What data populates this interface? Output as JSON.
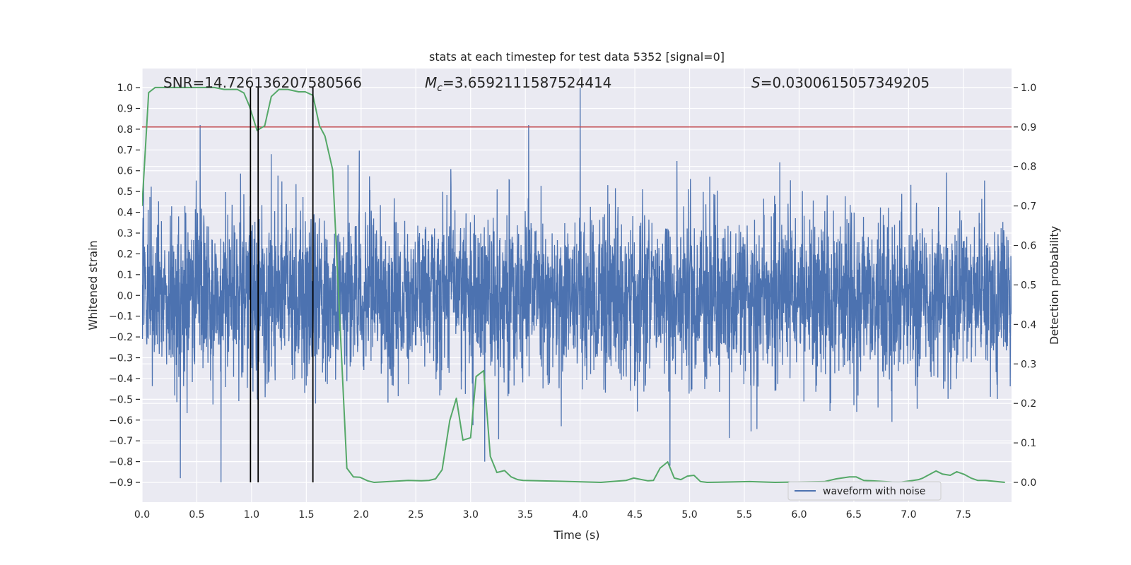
{
  "chart_data": {
    "type": "line",
    "title": "stats at each timestep for test data 5352 [signal=0]",
    "xlabel": "Time (s)",
    "ylabel": "Whitened strain",
    "ylabel_right": "Detection probability",
    "xlim": [
      0,
      7.94
    ],
    "ylim": [
      -0.995,
      1.092
    ],
    "ylim_right": [
      -0.05,
      1.048
    ],
    "grid": true,
    "xticks": [
      0,
      0.5,
      1,
      1.5,
      2,
      2.5,
      3,
      3.5,
      4,
      4.5,
      5,
      5.5,
      6,
      6.5,
      7,
      7.5
    ],
    "xtick_labels": [
      "0.0",
      "0.5",
      "1.0",
      "1.5",
      "2.0",
      "2.5",
      "3.0",
      "3.5",
      "4.0",
      "4.5",
      "5.0",
      "5.5",
      "6.0",
      "6.5",
      "7.0",
      "7.5"
    ],
    "yticks": [
      1.0,
      0.9,
      0.8,
      0.7,
      0.6,
      0.5,
      0.4,
      0.3,
      0.2,
      0.1,
      0.0,
      -0.1,
      -0.2,
      -0.3,
      -0.4,
      -0.5,
      -0.6,
      -0.7,
      -0.8,
      -0.9
    ],
    "ytick_labels": [
      "1.0",
      "0.9",
      "0.8",
      "0.7",
      "0.6",
      "0.5",
      "0.4",
      "0.3",
      "0.2",
      "0.1",
      "0.0",
      "−0.1",
      "−0.2",
      "−0.3",
      "−0.4",
      "−0.5",
      "−0.6",
      "−0.7",
      "−0.8",
      "−0.9"
    ],
    "yticks_right": [
      1.0,
      0.9,
      0.8,
      0.7,
      0.6,
      0.5,
      0.4,
      0.3,
      0.2,
      0.1,
      0.0
    ],
    "ytick_labels_right": [
      "1.0",
      "0.9",
      "0.8",
      "0.7",
      "0.6",
      "0.5",
      "0.4",
      "0.3",
      "0.2",
      "0.1",
      "0.0"
    ],
    "annotations": {
      "snr": "SNR=14.726136207580566",
      "mc_symbol": "M",
      "mc_subscript": "c",
      "mc_value": "=3.6592111587524414",
      "s_symbol": "S",
      "s_value": "=0.0300615057349205"
    },
    "legend": {
      "placement": "lower-right",
      "entries": [
        "waveform with noise"
      ]
    },
    "threshold_right": 0.9,
    "vertical_markers": [
      0.99,
      1.06,
      1.56
    ],
    "series": [
      {
        "name": "waveform with noise",
        "axis": "left",
        "color": "#4C72B0",
        "generated_noise": {
          "n_samples": 4000,
          "std": 0.2,
          "seed": 5352
        },
        "notable_peaks": [
          {
            "t": 0.53,
            "v": 0.82
          },
          {
            "t": 0.72,
            "v": -0.9
          },
          {
            "t": 0.35,
            "v": -0.88
          },
          {
            "t": 3.53,
            "v": 0.82
          },
          {
            "t": 4.0,
            "v": 1.0
          },
          {
            "t": 4.82,
            "v": -0.82
          },
          {
            "t": 3.13,
            "v": -0.8
          },
          {
            "t": 1.18,
            "v": 0.68
          }
        ]
      },
      {
        "name": "detection probability",
        "axis": "right",
        "color": "#55A868",
        "x": [
          0,
          0.06,
          0.12,
          0.66,
          0.75,
          0.87,
          0.93,
          0.98,
          1.05,
          1.12,
          1.18,
          1.25,
          1.33,
          1.43,
          1.49,
          1.56,
          1.62,
          1.67,
          1.74,
          1.87,
          1.93,
          1.99,
          2.06,
          2.12,
          2.25,
          2.43,
          2.55,
          2.62,
          2.68,
          2.74,
          2.81,
          2.87,
          2.93,
          3.0,
          3.05,
          3.12,
          3.18,
          3.24,
          3.31,
          3.37,
          3.43,
          3.48,
          3.8,
          4.19,
          4.42,
          4.49,
          4.62,
          4.67,
          4.73,
          4.8,
          4.86,
          4.92,
          4.98,
          5.04,
          5.1,
          5.16,
          5.55,
          5.78,
          6.23,
          6.34,
          6.46,
          6.52,
          6.59,
          6.66,
          6.91,
          7.02,
          7.09,
          7.13,
          7.25,
          7.31,
          7.38,
          7.44,
          7.51,
          7.57,
          7.63,
          7.7,
          7.88
        ],
        "y": [
          0.7,
          0.987,
          1.0,
          1.0,
          0.995,
          0.995,
          0.986,
          0.953,
          0.891,
          0.903,
          0.977,
          0.995,
          0.995,
          0.989,
          0.989,
          0.98,
          0.903,
          0.877,
          0.792,
          0.036,
          0.014,
          0.013,
          0.004,
          0.0,
          0.002,
          0.005,
          0.004,
          0.005,
          0.009,
          0.032,
          0.157,
          0.213,
          0.107,
          0.113,
          0.268,
          0.283,
          0.066,
          0.025,
          0.03,
          0.014,
          0.007,
          0.005,
          0.003,
          0.0,
          0.005,
          0.011,
          0.004,
          0.005,
          0.036,
          0.052,
          0.011,
          0.007,
          0.016,
          0.018,
          0.002,
          0.0,
          0.002,
          0.0,
          0.002,
          0.009,
          0.014,
          0.014,
          0.005,
          0.004,
          0.0,
          0.004,
          0.007,
          0.011,
          0.029,
          0.021,
          0.018,
          0.027,
          0.02,
          0.011,
          0.005,
          0.005,
          0.0
        ]
      }
    ],
    "colors": {
      "plot_bg": "#EAEAF2",
      "grid": "#FFFFFF",
      "threshold": "#C44E52",
      "markers": "#000000",
      "text": "#262626"
    }
  }
}
